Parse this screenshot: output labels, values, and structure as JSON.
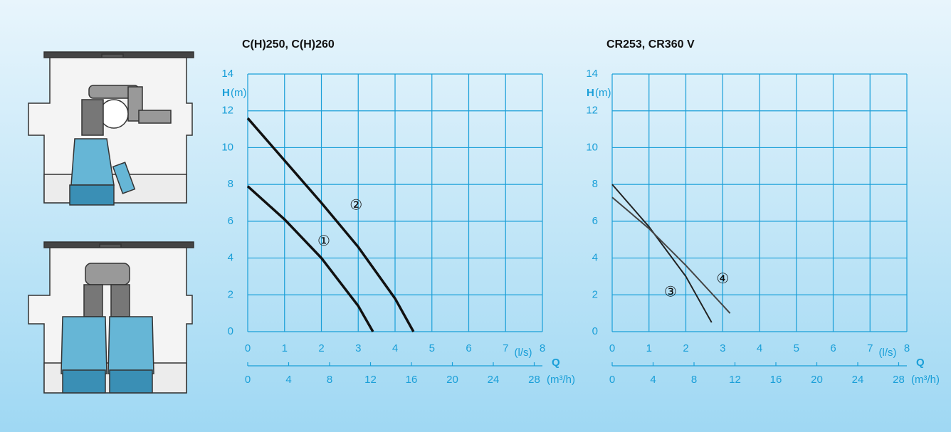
{
  "chart_data": [
    {
      "type": "line",
      "title": "C(H)250, C(H)260",
      "x_label": "Q",
      "x_unit": "(l/s)",
      "x2_unit": "(m³/h)",
      "y_label": "H",
      "y_unit": "(m)",
      "xlim": [
        0,
        8
      ],
      "xticks": [
        0,
        1,
        2,
        3,
        4,
        5,
        6,
        7,
        8
      ],
      "x2lim": [
        0,
        28.8
      ],
      "x2ticks": [
        0,
        4,
        8,
        12,
        16,
        20,
        24,
        28
      ],
      "ylim": [
        0,
        14
      ],
      "yticks": [
        0,
        2,
        4,
        6,
        8,
        10,
        12,
        14
      ],
      "grid": true,
      "series": [
        {
          "name": "①",
          "color": "#111111",
          "x": [
            0,
            1,
            2,
            3,
            3.4
          ],
          "values": [
            7.9,
            6.1,
            4.0,
            1.4,
            0
          ]
        },
        {
          "name": "②",
          "color": "#111111",
          "x": [
            0,
            1,
            2,
            3,
            4,
            4.5
          ],
          "values": [
            11.6,
            9.3,
            7.0,
            4.6,
            1.8,
            0
          ]
        }
      ]
    },
    {
      "type": "line",
      "title": "CR253, CR360 V",
      "x_label": "Q",
      "x_unit": "(l/s)",
      "x2_unit": "(m³/h)",
      "y_label": "H",
      "y_unit": "(m)",
      "xlim": [
        0,
        8
      ],
      "xticks": [
        0,
        1,
        2,
        3,
        4,
        5,
        6,
        7,
        8
      ],
      "x2lim": [
        0,
        28.8
      ],
      "x2ticks": [
        0,
        4,
        8,
        12,
        16,
        20,
        24,
        28
      ],
      "ylim": [
        0,
        14
      ],
      "yticks": [
        0,
        2,
        4,
        6,
        8,
        10,
        12,
        14
      ],
      "grid": true,
      "series": [
        {
          "name": "③",
          "color": "#222222",
          "x": [
            0,
            1,
            2,
            2.7
          ],
          "values": [
            8.0,
            5.7,
            3.0,
            0.5
          ]
        },
        {
          "name": "④",
          "color": "#444444",
          "x": [
            0,
            1,
            2,
            3.2
          ],
          "values": [
            7.3,
            5.6,
            3.6,
            1.0
          ]
        }
      ]
    }
  ]
}
